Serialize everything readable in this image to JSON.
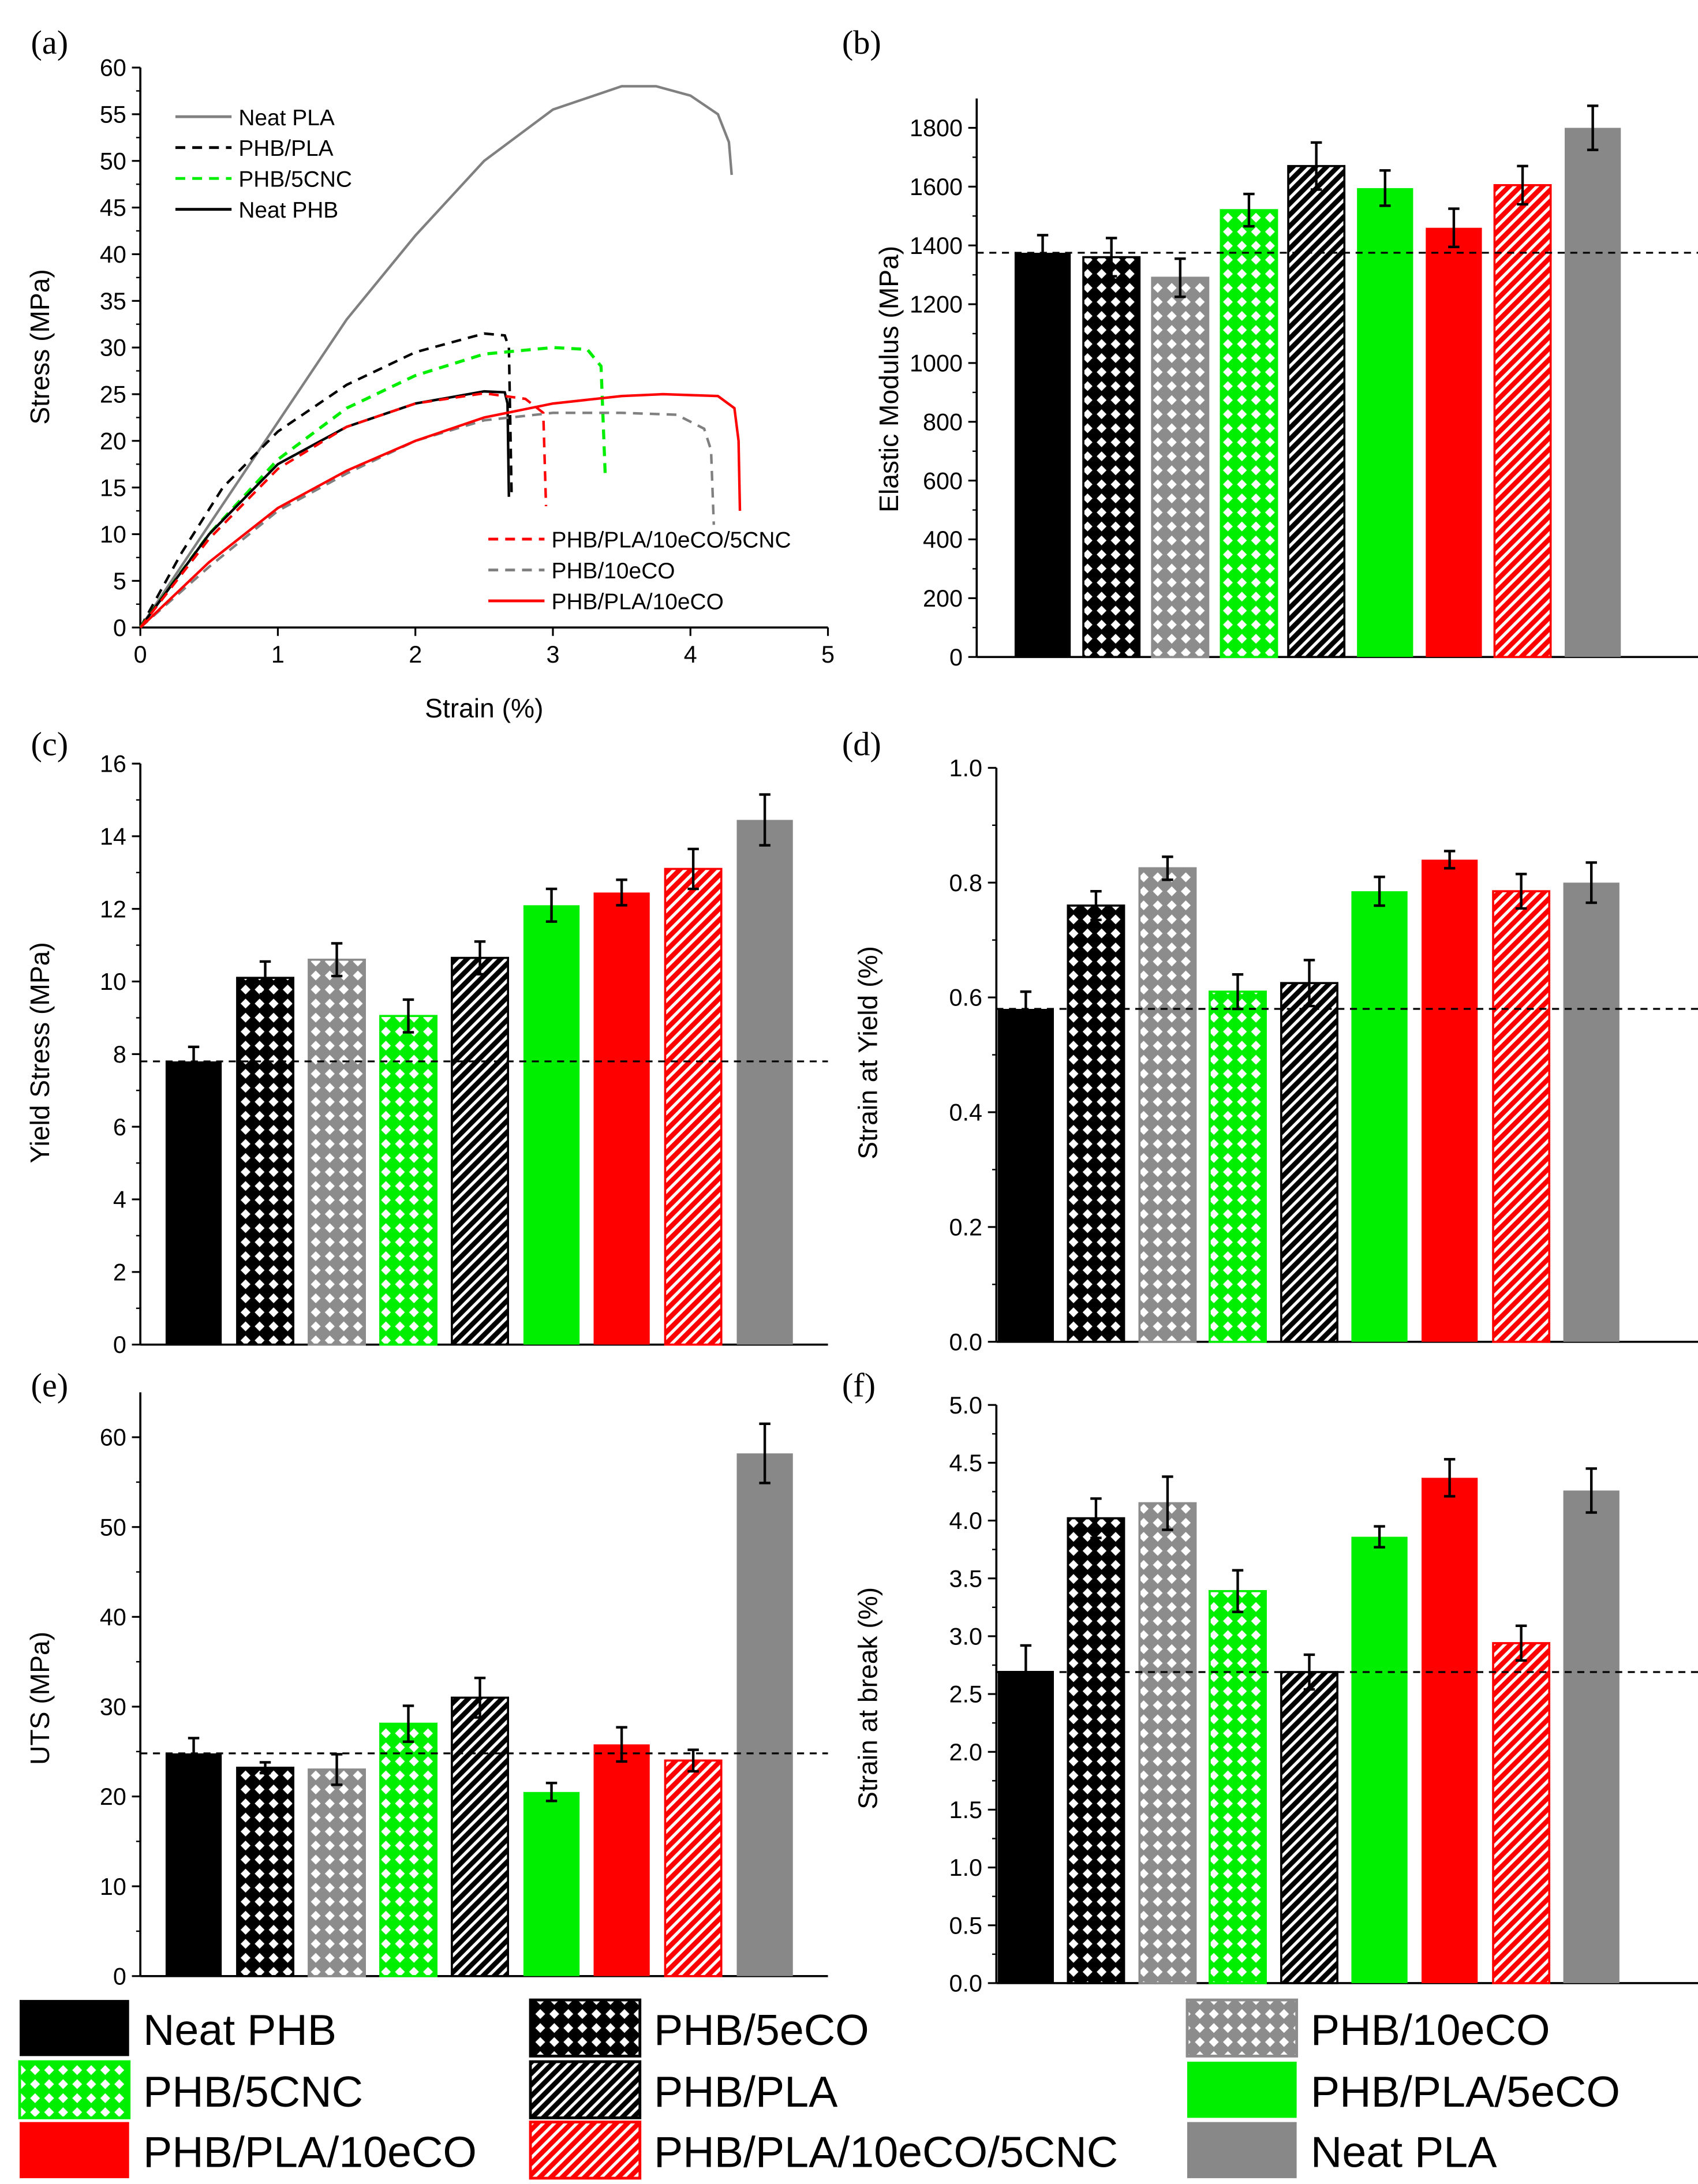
{
  "groups": [
    {
      "name": "Neat PHB",
      "color": "#000000",
      "pattern": "solid"
    },
    {
      "name": "PHB/5eCO",
      "color": "#000000",
      "pattern": "crosshatch"
    },
    {
      "name": "PHB/10eCO",
      "color": "#8c8c8c",
      "pattern": "crosshatch"
    },
    {
      "name": "PHB/5CNC",
      "color": "#00ee00",
      "pattern": "crosshatch"
    },
    {
      "name": "PHB/PLA",
      "color": "#000000",
      "pattern": "diagonal"
    },
    {
      "name": "PHB/PLA/5eCO",
      "color": "#00ee00",
      "pattern": "solid"
    },
    {
      "name": "PHB/PLA/10eCO",
      "color": "#ff0000",
      "pattern": "solid"
    },
    {
      "name": "PHB/PLA/10eCO/5CNC",
      "color": "#ff0000",
      "pattern": "diagonal"
    },
    {
      "name": "Neat PLA",
      "color": "#888888",
      "pattern": "solid"
    }
  ],
  "chart_data": [
    {
      "panel": "(a)",
      "type": "line",
      "xlabel": "Strain (%)",
      "ylabel": "Stress (MPa)",
      "xlim": [
        0,
        5
      ],
      "ylim": [
        0,
        60
      ],
      "xticks": [
        "0",
        "1",
        "2",
        "3",
        "4",
        "5"
      ],
      "yticks": [
        "0",
        "5",
        "10",
        "15",
        "20",
        "25",
        "30",
        "35",
        "40",
        "45",
        "50",
        "55",
        "60"
      ],
      "series": [
        {
          "name": "Neat PLA",
          "color": "#808080",
          "dash": false,
          "legend": "top-left",
          "points": [
            [
              0,
              0
            ],
            [
              0.5,
              11
            ],
            [
              1,
              22
            ],
            [
              1.5,
              33
            ],
            [
              2,
              42
            ],
            [
              2.5,
              50
            ],
            [
              3,
              55.5
            ],
            [
              3.5,
              58
            ],
            [
              3.75,
              58
            ],
            [
              4,
              57
            ],
            [
              4.2,
              55
            ],
            [
              4.28,
              52
            ],
            [
              4.3,
              48.5
            ]
          ]
        },
        {
          "name": "PHB/PLA",
          "color": "#000000",
          "dash": true,
          "legend": "top-left",
          "points": [
            [
              0,
              0
            ],
            [
              0.3,
              8
            ],
            [
              0.6,
              15
            ],
            [
              1,
              21
            ],
            [
              1.5,
              26
            ],
            [
              2,
              29.5
            ],
            [
              2.5,
              31.5
            ],
            [
              2.65,
              31.3
            ],
            [
              2.68,
              30
            ],
            [
              2.7,
              14
            ]
          ]
        },
        {
          "name": "PHB/5CNC",
          "color": "#00ee00",
          "dash": true,
          "legend": "top-left",
          "points": [
            [
              0,
              0
            ],
            [
              0.5,
              10
            ],
            [
              1,
              18
            ],
            [
              1.5,
              23.5
            ],
            [
              2,
              27
            ],
            [
              2.5,
              29.3
            ],
            [
              3,
              30
            ],
            [
              3.25,
              29.8
            ],
            [
              3.35,
              28
            ],
            [
              3.38,
              16.5
            ]
          ]
        },
        {
          "name": "Neat PHB",
          "color": "#000000",
          "dash": false,
          "legend": "top-left",
          "points": [
            [
              0,
              0
            ],
            [
              0.5,
              10
            ],
            [
              1,
              17.5
            ],
            [
              1.5,
              21.5
            ],
            [
              2,
              24
            ],
            [
              2.5,
              25.3
            ],
            [
              2.65,
              25.2
            ],
            [
              2.67,
              24
            ],
            [
              2.68,
              14
            ]
          ]
        },
        {
          "name": "PHB/PLA/10eCO/5CNC",
          "color": "#ff0000",
          "dash": true,
          "legend": "bottom-right",
          "points": [
            [
              0,
              0
            ],
            [
              0.5,
              9.5
            ],
            [
              1,
              17
            ],
            [
              1.5,
              21.5
            ],
            [
              2,
              24
            ],
            [
              2.5,
              25.1
            ],
            [
              2.8,
              24.5
            ],
            [
              2.93,
              23
            ],
            [
              2.95,
              13
            ]
          ]
        },
        {
          "name": "PHB/10eCO",
          "color": "#808080",
          "dash": true,
          "legend": "bottom-right",
          "points": [
            [
              0,
              0
            ],
            [
              0.5,
              6.5
            ],
            [
              1,
              12.5
            ],
            [
              1.5,
              16.5
            ],
            [
              2,
              20
            ],
            [
              2.5,
              22.2
            ],
            [
              3,
              23
            ],
            [
              3.5,
              23
            ],
            [
              3.9,
              22.8
            ],
            [
              4.1,
              21.3
            ],
            [
              4.15,
              19
            ],
            [
              4.17,
              11
            ]
          ]
        },
        {
          "name": "PHB/PLA/10eCO",
          "color": "#ff0000",
          "dash": false,
          "legend": "bottom-right",
          "points": [
            [
              0,
              0
            ],
            [
              0.5,
              7
            ],
            [
              1,
              12.8
            ],
            [
              1.5,
              16.8
            ],
            [
              2,
              20
            ],
            [
              2.5,
              22.5
            ],
            [
              3,
              24
            ],
            [
              3.5,
              24.8
            ],
            [
              3.8,
              25
            ],
            [
              4.2,
              24.8
            ],
            [
              4.32,
              23.5
            ],
            [
              4.35,
              20
            ],
            [
              4.36,
              12.5
            ]
          ]
        }
      ]
    },
    {
      "panel": "(b)",
      "type": "bar",
      "ylabel": "Elastic Modulus (MPa)",
      "ylim": [
        0,
        1900
      ],
      "yticks": [
        "0",
        "200",
        "400",
        "600",
        "800",
        "1000",
        "1200",
        "1400",
        "1600",
        "1800"
      ],
      "reference": 1375,
      "values": [
        1375,
        1360,
        1290,
        1520,
        1670,
        1595,
        1460,
        1605,
        1800
      ],
      "errors": [
        60,
        65,
        65,
        55,
        80,
        60,
        65,
        65,
        75
      ]
    },
    {
      "panel": "(c)",
      "type": "bar",
      "ylabel": "Yield Stress (MPa)",
      "ylim": [
        0,
        16
      ],
      "yticks": [
        "0",
        "2",
        "4",
        "6",
        "8",
        "10",
        "12",
        "14",
        "16"
      ],
      "reference": 7.8,
      "values": [
        7.8,
        10.1,
        10.6,
        9.05,
        10.65,
        12.1,
        12.45,
        13.1,
        14.45
      ],
      "errors": [
        0.4,
        0.45,
        0.45,
        0.45,
        0.45,
        0.45,
        0.35,
        0.55,
        0.7
      ]
    },
    {
      "panel": "(d)",
      "type": "bar",
      "ylabel": "Strain at Yield (%)",
      "ylim": [
        0,
        1.0
      ],
      "yticks": [
        "0.0",
        "0.2",
        "0.4",
        "0.6",
        "0.8",
        "1.0"
      ],
      "reference": 0.58,
      "values": [
        0.58,
        0.76,
        0.825,
        0.61,
        0.625,
        0.785,
        0.84,
        0.785,
        0.8
      ],
      "errors": [
        0.03,
        0.025,
        0.02,
        0.03,
        0.04,
        0.025,
        0.015,
        0.03,
        0.035
      ]
    },
    {
      "panel": "(e)",
      "type": "bar",
      "ylabel": "UTS (MPa)",
      "ylim": [
        0,
        65
      ],
      "yticks": [
        "0",
        "10",
        "20",
        "30",
        "40",
        "50",
        "60"
      ],
      "reference": 24.8,
      "values": [
        24.8,
        23.2,
        23.0,
        28.1,
        31.0,
        20.5,
        25.8,
        24.0,
        58.2
      ],
      "errors": [
        1.7,
        0.6,
        1.7,
        2.0,
        2.2,
        1.0,
        1.9,
        1.2,
        3.3
      ]
    },
    {
      "panel": "(f)",
      "type": "bar",
      "ylabel": "Strain at break (%)",
      "ylim": [
        0,
        5.0
      ],
      "yticks": [
        "0.0",
        "0.5",
        "1.0",
        "1.5",
        "2.0",
        "2.5",
        "3.0",
        "3.5",
        "4.0",
        "4.5",
        "5.0"
      ],
      "reference": 2.69,
      "values": [
        2.7,
        4.02,
        4.15,
        3.39,
        2.69,
        3.86,
        4.37,
        2.94,
        4.26
      ],
      "errors": [
        0.22,
        0.17,
        0.23,
        0.18,
        0.15,
        0.09,
        0.16,
        0.15,
        0.19
      ]
    }
  ]
}
